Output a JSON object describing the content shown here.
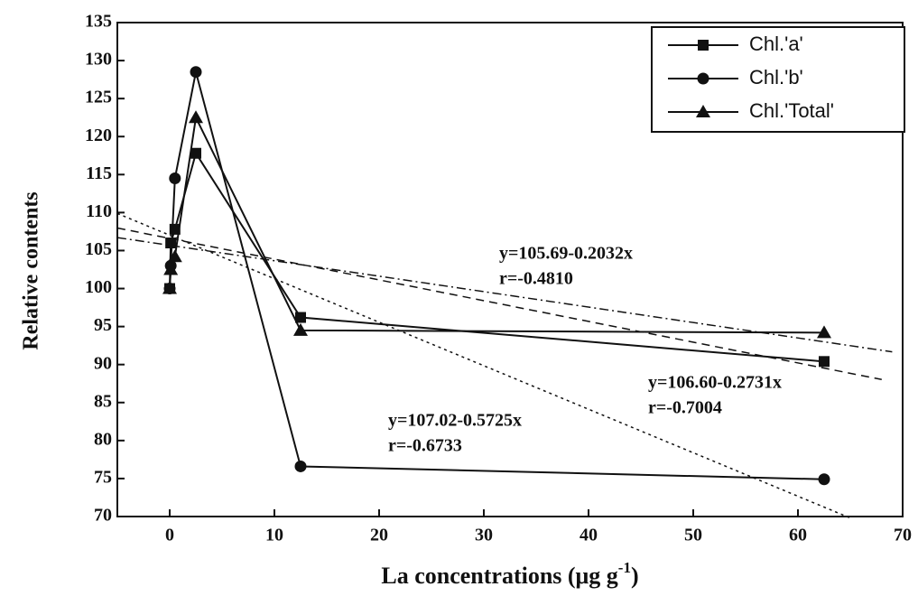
{
  "chart_data": {
    "type": "line",
    "xlabel": {
      "text": "La concentrations (μg g",
      "sup": "-1",
      "tail": ")"
    },
    "ylabel": "Relative contents",
    "x": [
      0,
      0.1,
      0.5,
      2.5,
      12.5,
      62.5
    ],
    "series": [
      {
        "name": "Chl.'a'",
        "marker": "square",
        "color": "#111111",
        "values": [
          100,
          106,
          107.8,
          117.8,
          96.2,
          90.4
        ]
      },
      {
        "name": "Chl.'b'",
        "marker": "circle",
        "color": "#111111",
        "values": [
          100,
          103,
          114.5,
          128.5,
          76.6,
          74.9
        ]
      },
      {
        "name": "Chl.'Total'",
        "marker": "triangle",
        "color": "#111111",
        "values": [
          100,
          102.5,
          104.2,
          122.5,
          94.5,
          94.2
        ]
      }
    ],
    "fits": [
      {
        "equation": "y=105.69-0.2032x",
        "r": "r=-0.4810",
        "intercept": 105.69,
        "slope": -0.2032,
        "dash": "10 4 2 4"
      },
      {
        "equation": "y=106.60-0.2731x",
        "r": "r=-0.7004",
        "intercept": 106.6,
        "slope": -0.2731,
        "dash": "9 6"
      },
      {
        "equation": "y=107.02-0.5725x",
        "r": "r=-0.6733",
        "intercept": 107.02,
        "slope": -0.5725,
        "dash": "3 4"
      }
    ],
    "xlim": [
      -5,
      70
    ],
    "xticks": [
      0,
      10,
      20,
      30,
      40,
      50,
      60,
      70
    ],
    "ylim": [
      70,
      135
    ],
    "yticks": [
      70,
      75,
      80,
      85,
      90,
      95,
      100,
      105,
      110,
      115,
      120,
      125,
      130,
      135
    ],
    "legend": "upper right"
  }
}
